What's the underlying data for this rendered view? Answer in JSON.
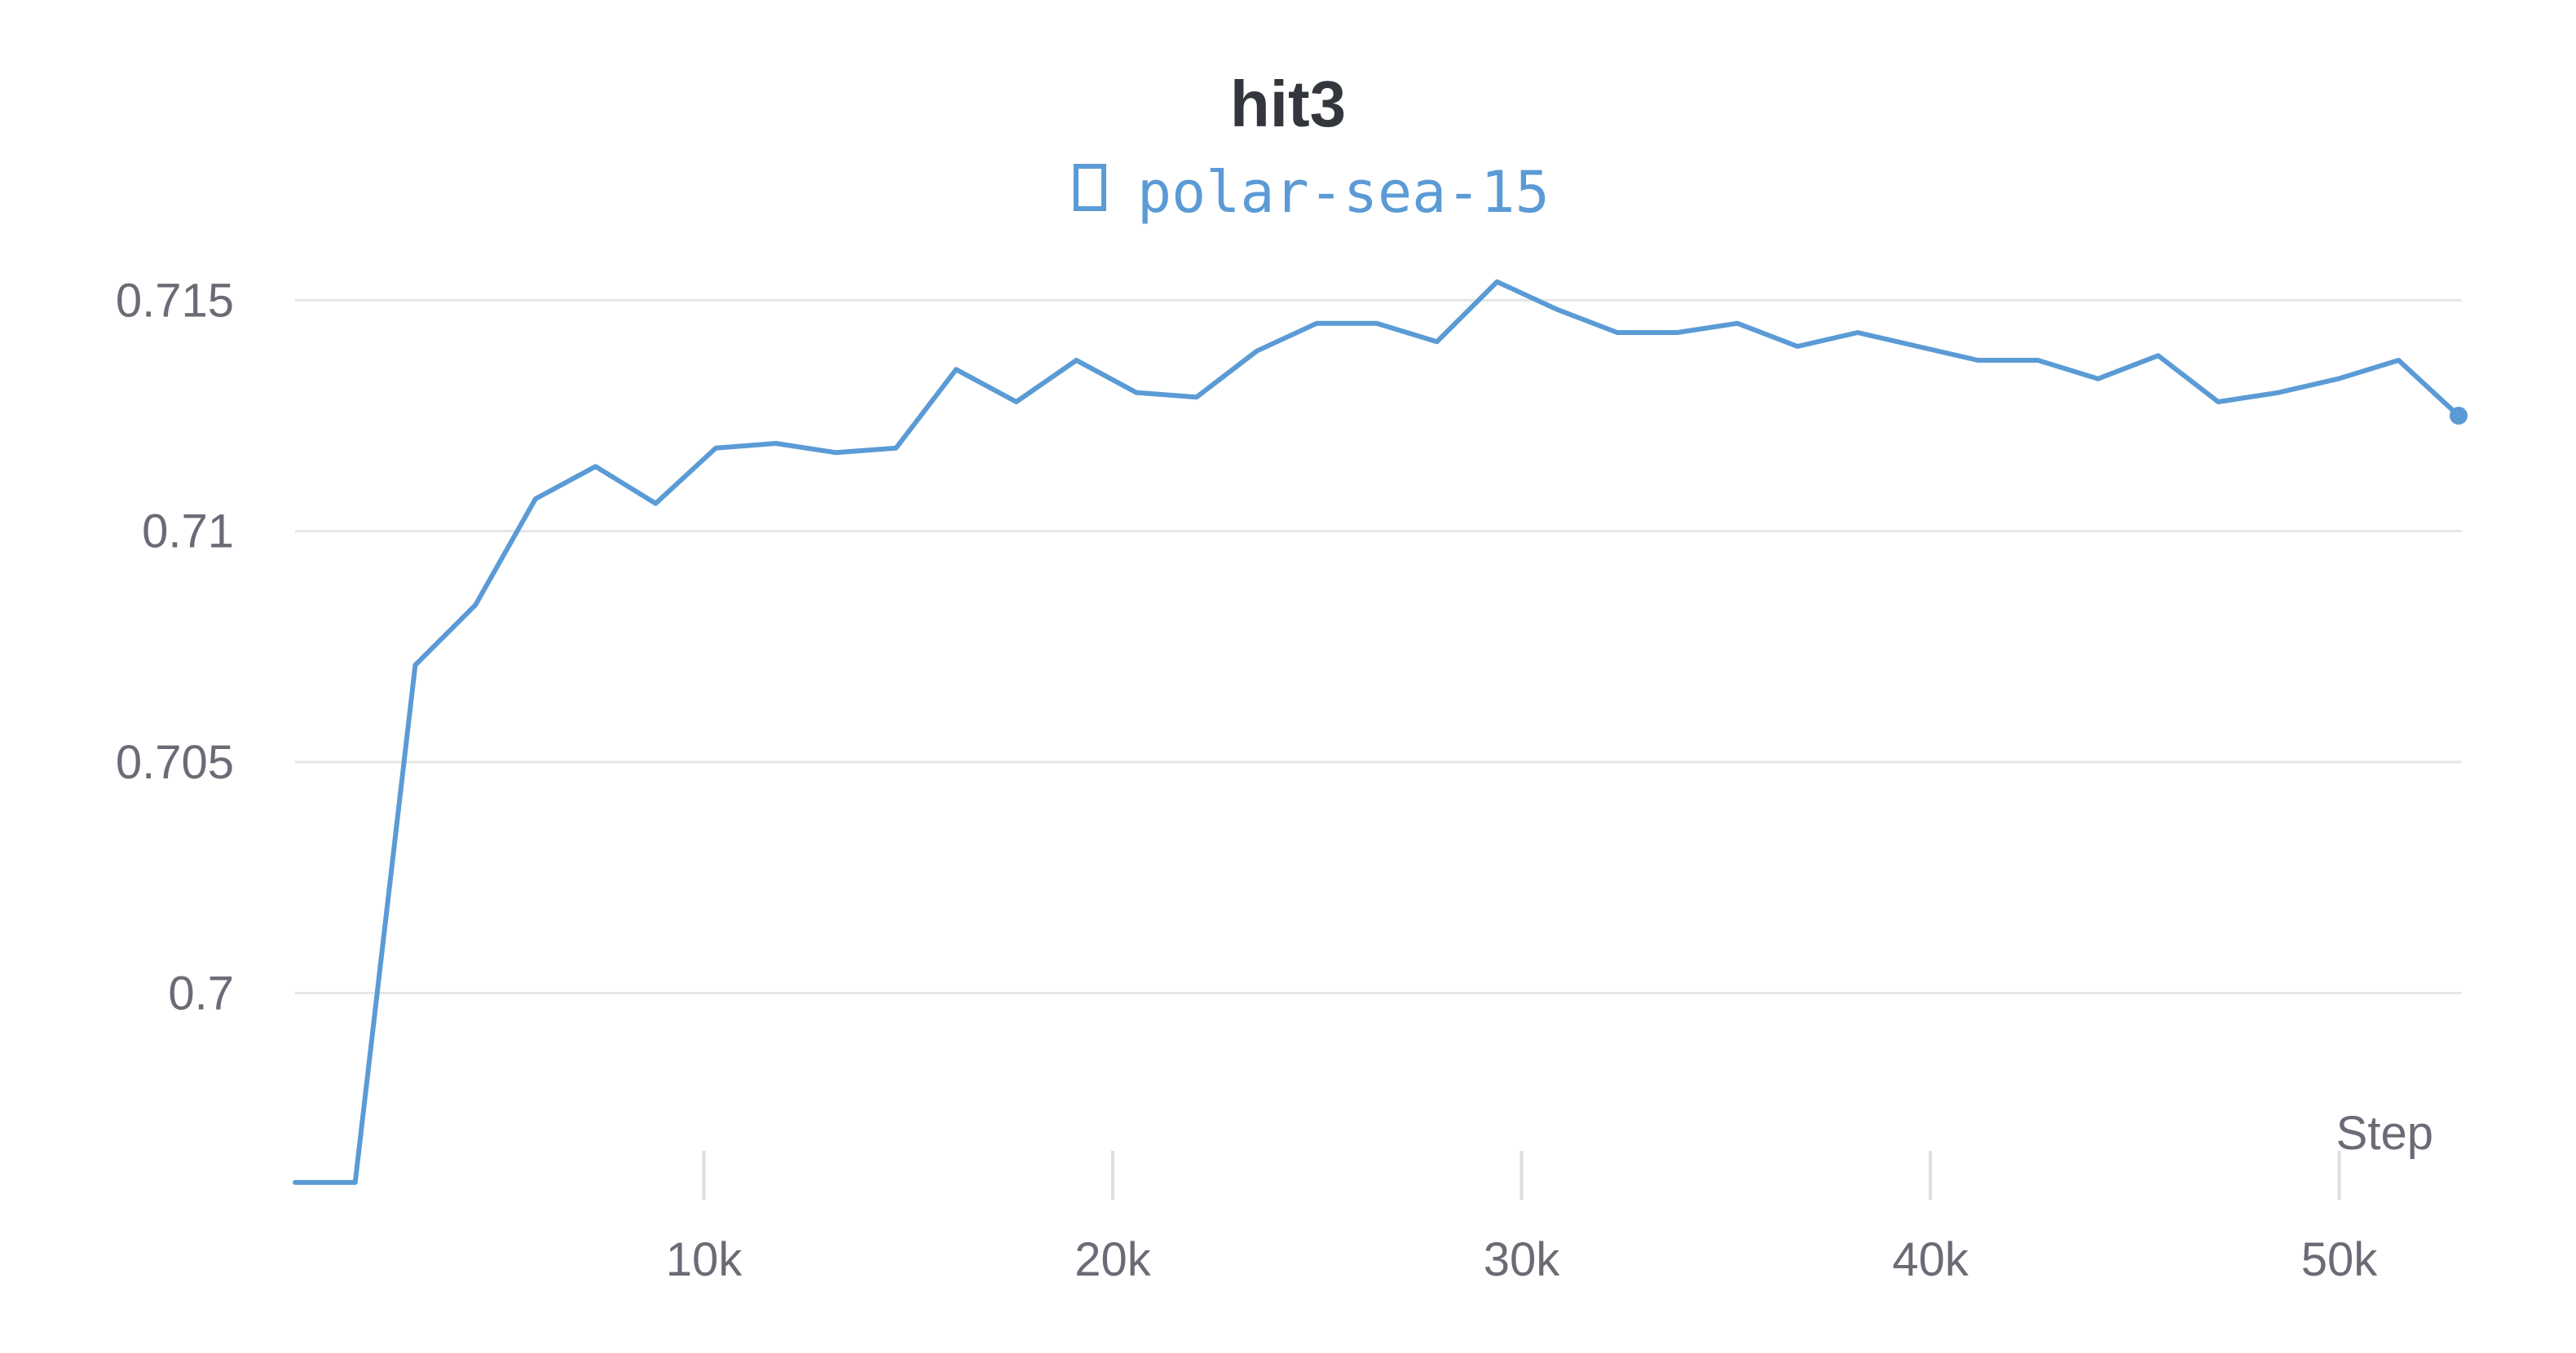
{
  "chart_data": {
    "type": "line",
    "title": "hit3",
    "xlabel": "Step",
    "ylabel": "",
    "xlim": [
      0,
      53000
    ],
    "ylim": [
      0.696,
      0.7155
    ],
    "grid": "horizontal",
    "legend": "top-center",
    "x_ticks": [
      {
        "value": 10000,
        "label": "10k"
      },
      {
        "value": 20000,
        "label": "20k"
      },
      {
        "value": 30000,
        "label": "30k"
      },
      {
        "value": 40000,
        "label": "40k"
      },
      {
        "value": 50000,
        "label": "50k"
      }
    ],
    "y_ticks": [
      {
        "value": 0.7,
        "label": "0.7"
      },
      {
        "value": 0.705,
        "label": "0.705"
      },
      {
        "value": 0.71,
        "label": "0.71"
      },
      {
        "value": 0.715,
        "label": "0.715"
      }
    ],
    "series": [
      {
        "name": "polar-sea-15",
        "color": "#5b9bd5",
        "icon": "square-outline-icon",
        "x": [
          0,
          1470,
          2940,
          4410,
          5880,
          7350,
          8820,
          10290,
          11760,
          13230,
          14700,
          16170,
          17640,
          19110,
          20580,
          22050,
          23520,
          24990,
          26460,
          27930,
          29400,
          30870,
          32340,
          33810,
          35280,
          36750,
          38220,
          39690,
          41160,
          42630,
          44100,
          45570,
          47040,
          48510,
          49980,
          51450,
          52920
        ],
        "y": [
          0.6959,
          0.6959,
          0.7071,
          0.7084,
          0.7107,
          0.7114,
          0.7106,
          0.7118,
          0.7119,
          0.7117,
          0.7118,
          0.7135,
          0.7128,
          0.7137,
          0.713,
          0.7129,
          0.7139,
          0.7145,
          0.7145,
          0.7141,
          0.7154,
          0.7148,
          0.7143,
          0.7143,
          0.7145,
          0.714,
          0.7143,
          0.714,
          0.7137,
          0.7137,
          0.7133,
          0.7138,
          0.7128,
          0.713,
          0.7133,
          0.7137,
          0.7125
        ]
      }
    ]
  }
}
